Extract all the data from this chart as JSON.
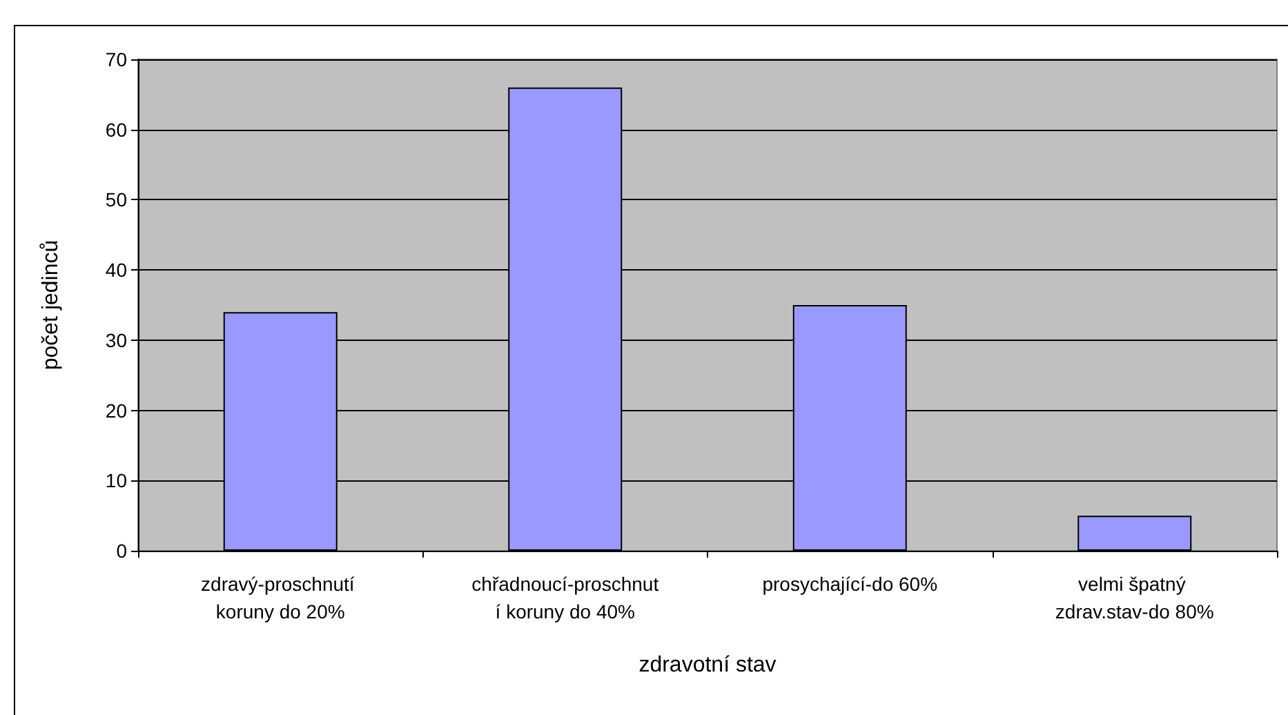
{
  "chart_data": {
    "type": "bar",
    "xlabel": "zdravotní stav",
    "ylabel": "počet jedinců",
    "categories": [
      "zdravý-proschnutí koruny do 20%",
      "chřadnoucí-proschnutí koruny do 40%",
      "prosychající-do 60%",
      "velmi špatný zdrav.stav-do 80%"
    ],
    "values": [
      34,
      66,
      35,
      5
    ],
    "color": "#9999ff",
    "ylim": [
      0,
      70
    ],
    "yticks": [
      0,
      10,
      20,
      30,
      40,
      50,
      60,
      70
    ],
    "grid": "y"
  }
}
